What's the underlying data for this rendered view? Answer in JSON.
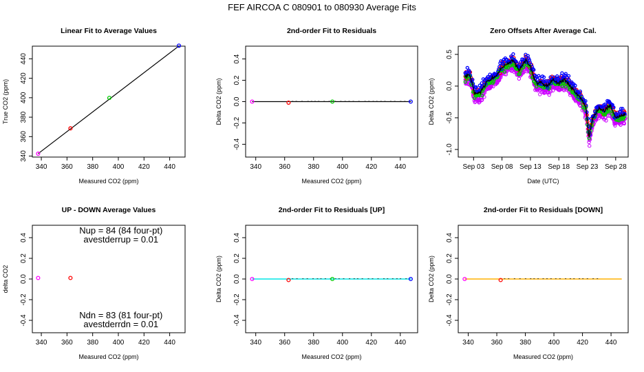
{
  "figure": {
    "title": "FEF   AIRCOA C   080901 to 080930   Average Fits"
  },
  "chart_data": [
    {
      "type": "scatter",
      "title": "Linear Fit to Average Values",
      "xlabel": "Measured CO2 (ppm)",
      "ylabel": "True CO2 (ppm)",
      "xlim": [
        333,
        452
      ],
      "ylim": [
        339,
        453
      ],
      "xticks": [
        "340",
        "360",
        "380",
        "400",
        "420",
        "440"
      ],
      "yticks": [
        "340",
        "360",
        "380",
        "400",
        "420",
        "440"
      ],
      "xtick_values": [
        340,
        360,
        380,
        400,
        420,
        440
      ],
      "ytick_values": [
        340,
        360,
        380,
        400,
        420,
        440
      ],
      "fit_line": [
        [
          337.5,
          342.5
        ],
        [
          447.5,
          453.5
        ]
      ],
      "series": [
        {
          "color": "#ff00ff",
          "values": [
            [
              337.5,
              342.5
            ]
          ]
        },
        {
          "color": "#ff0000",
          "values": [
            [
              362.7,
              368.5
            ]
          ]
        },
        {
          "color": "#00cc00",
          "values": [
            [
              393.0,
              399.8
            ]
          ]
        },
        {
          "color": "#0000ff",
          "values": [
            [
              447.2,
              453.5
            ]
          ]
        }
      ]
    },
    {
      "type": "scatter",
      "title": "2nd-order Fit to Residuals",
      "xlabel": "Measured CO2 (ppm)",
      "ylabel": "Delta CO2 (ppm)",
      "xlim": [
        333,
        452
      ],
      "ylim": [
        -0.52,
        0.52
      ],
      "xticks": [
        "340",
        "360",
        "380",
        "400",
        "420",
        "440"
      ],
      "yticks": [
        "-0.4",
        "-0.2",
        "0.0",
        "0.2",
        "0.4"
      ],
      "xtick_values": [
        340,
        360,
        380,
        400,
        420,
        440
      ],
      "ytick_values": [
        -0.4,
        -0.2,
        0.0,
        0.2,
        0.4
      ],
      "fit_line": [
        [
          337.5,
          0.0
        ],
        [
          447.5,
          0.0
        ]
      ],
      "series": [
        {
          "color": "#ff00ff",
          "values": [
            [
              337.5,
              0.0
            ]
          ]
        },
        {
          "color": "#ff0000",
          "values": [
            [
              362.7,
              -0.01
            ]
          ]
        },
        {
          "color": "#00cc00",
          "values": [
            [
              393.0,
              0.0
            ]
          ]
        },
        {
          "color": "#0000ff",
          "values": [
            [
              447.2,
              0.0
            ]
          ]
        }
      ]
    },
    {
      "type": "scatter",
      "title": "Zero Offsets After Average Cal.",
      "xlabel": "Date (UTC)",
      "ylabel": "Delta CO2 (ppm)",
      "xlim": [
        0.3,
        30.2
      ],
      "ylim": [
        -1.12,
        0.63
      ],
      "xticks": [
        "Sep 03",
        "Sep 08",
        "Sep 13",
        "Sep 18",
        "Sep 23",
        "Sep 28"
      ],
      "yticks": [
        "-1.0",
        "-0.5",
        "0.0",
        "0.5"
      ],
      "xtick_values": [
        3,
        8,
        13,
        18,
        23,
        28
      ],
      "ytick_values": [
        -1.0,
        -0.5,
        0.0,
        0.5
      ],
      "day_range": [
        1.5,
        29.7
      ],
      "offset_curve": [
        [
          1.5,
          0.15
        ],
        [
          2.3,
          0.18
        ],
        [
          3.2,
          -0.12
        ],
        [
          4.2,
          -0.1
        ],
        [
          5.2,
          0.05
        ],
        [
          6.2,
          0.12
        ],
        [
          7.0,
          0.15
        ],
        [
          8.0,
          0.3
        ],
        [
          9.0,
          0.35
        ],
        [
          10.0,
          0.4
        ],
        [
          11.0,
          0.25
        ],
        [
          12.2,
          0.42
        ],
        [
          13.0,
          0.3
        ],
        [
          14.0,
          0.05
        ],
        [
          15.0,
          0.05
        ],
        [
          16.0,
          0.0
        ],
        [
          17.0,
          0.1
        ],
        [
          18.0,
          0.05
        ],
        [
          19.0,
          0.1
        ],
        [
          20.0,
          0.0
        ],
        [
          21.0,
          -0.1
        ],
        [
          22.0,
          -0.2
        ],
        [
          22.8,
          -0.35
        ],
        [
          23.3,
          -0.8
        ],
        [
          24.0,
          -0.5
        ],
        [
          25.0,
          -0.35
        ],
        [
          26.0,
          -0.4
        ],
        [
          27.0,
          -0.3
        ],
        [
          28.0,
          -0.5
        ],
        [
          29.7,
          -0.45
        ]
      ],
      "series": [
        {
          "color": "#cc00ff"
        },
        {
          "color": "#ff0000"
        },
        {
          "color": "#00cc00"
        },
        {
          "color": "#0000ff"
        },
        {
          "color": "#000000"
        }
      ]
    },
    {
      "type": "scatter",
      "title": "UP - DOWN Average Values",
      "xlabel": "Measured CO2 (ppm)",
      "ylabel": "delta CO2",
      "xlim": [
        333,
        452
      ],
      "ylim": [
        -0.52,
        0.52
      ],
      "xticks": [
        "340",
        "360",
        "380",
        "400",
        "420",
        "440"
      ],
      "yticks": [
        "-0.4",
        "-0.2",
        "0.0",
        "0.2",
        "0.4"
      ],
      "xtick_values": [
        340,
        360,
        380,
        400,
        420,
        440
      ],
      "ytick_values": [
        -0.4,
        -0.2,
        0.0,
        0.2,
        0.4
      ],
      "series": [
        {
          "color": "#ff00ff",
          "values": [
            [
              337.5,
              0.01
            ]
          ]
        },
        {
          "color": "#ff0000",
          "values": [
            [
              362.7,
              0.01
            ]
          ]
        }
      ],
      "annotations": [
        "Nup = 84 (84 four-pt)",
        "avestderrup =  0.01",
        "Ndn = 83 (81 four-pt)",
        "avestderrdn =  0.01"
      ]
    },
    {
      "type": "scatter",
      "title": "2nd-order Fit to Residuals [UP]",
      "xlabel": "Measured CO2 (ppm)",
      "ylabel": "Delta CO2 (ppm)",
      "xlim": [
        333,
        452
      ],
      "ylim": [
        -0.52,
        0.52
      ],
      "xticks": [
        "340",
        "360",
        "380",
        "400",
        "420",
        "440"
      ],
      "yticks": [
        "-0.4",
        "-0.2",
        "0.0",
        "0.2",
        "0.4"
      ],
      "xtick_values": [
        340,
        360,
        380,
        400,
        420,
        440
      ],
      "ytick_values": [
        -0.4,
        -0.2,
        0.0,
        0.2,
        0.4
      ],
      "fit_line": [
        [
          337.5,
          0.0
        ],
        [
          447.5,
          0.0
        ]
      ],
      "fit_color": "#00e5e5",
      "series": [
        {
          "color": "#ff00ff",
          "values": [
            [
              337.5,
              0.0
            ]
          ]
        },
        {
          "color": "#ff0000",
          "values": [
            [
              362.7,
              -0.01
            ]
          ]
        },
        {
          "color": "#00cc00",
          "values": [
            [
              393.0,
              0.0
            ]
          ]
        },
        {
          "color": "#0000ff",
          "values": [
            [
              447.2,
              0.0
            ]
          ]
        }
      ]
    },
    {
      "type": "scatter",
      "title": "2nd-order Fit to Residuals [DOWN]",
      "xlabel": "Measured CO2 (ppm)",
      "ylabel": "Delta CO2 (ppm)",
      "xlim": [
        333,
        452
      ],
      "ylim": [
        -0.52,
        0.52
      ],
      "xticks": [
        "340",
        "360",
        "380",
        "400",
        "420",
        "440"
      ],
      "yticks": [
        "-0.4",
        "-0.2",
        "0.0",
        "0.2",
        "0.4"
      ],
      "xtick_values": [
        340,
        360,
        380,
        400,
        420,
        440
      ],
      "ytick_values": [
        -0.4,
        -0.2,
        0.0,
        0.2,
        0.4
      ],
      "fit_line": [
        [
          337.5,
          0.0
        ],
        [
          447.5,
          0.0
        ]
      ],
      "fit_color": "#ffb000",
      "series": [
        {
          "color": "#ff00ff",
          "values": [
            [
              337.5,
              0.0
            ]
          ]
        },
        {
          "color": "#ff0000",
          "values": [
            [
              362.7,
              -0.01
            ]
          ]
        }
      ]
    }
  ]
}
